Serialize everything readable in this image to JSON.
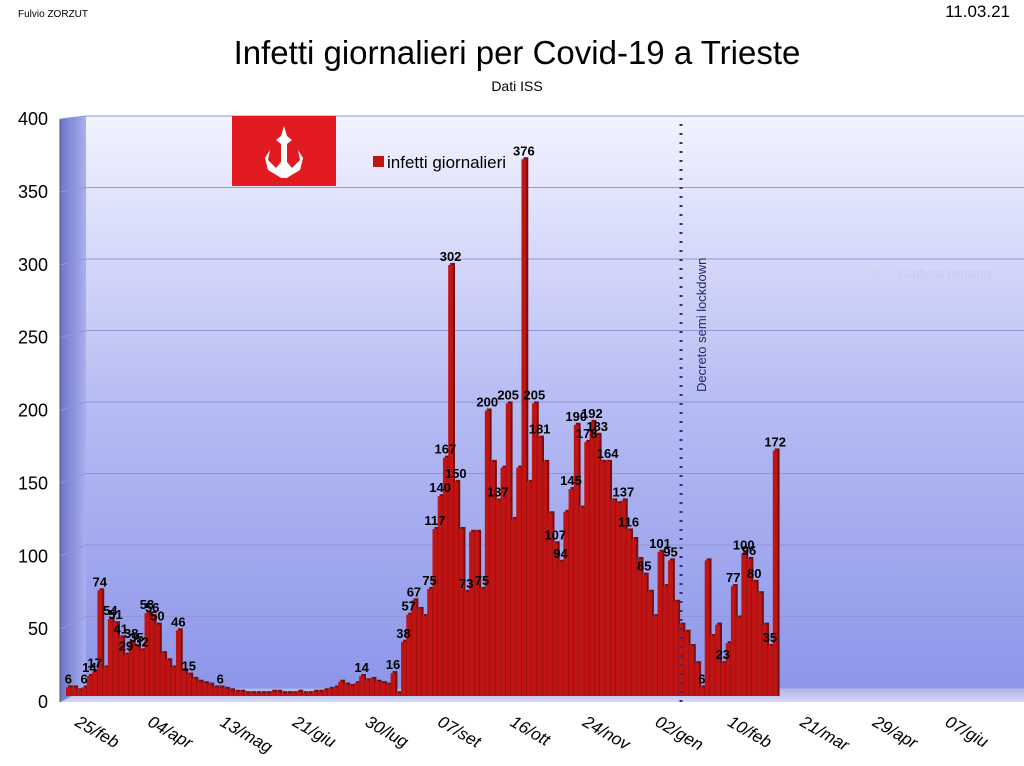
{
  "header": {
    "author": "Fulvio ZORZUT",
    "date": "11.03.21"
  },
  "chart_data": {
    "type": "bar",
    "title": "Infetti giornalieri per Covid-19 a Trieste",
    "subtitle": "Dati ISS",
    "xlabel": "",
    "ylabel": "",
    "ylim": [
      0,
      400
    ],
    "y_ticks": [
      0,
      50,
      100,
      150,
      200,
      250,
      300,
      350,
      400
    ],
    "x_ticks": [
      "25/feb",
      "04/apr",
      "13/mag",
      "21/giu",
      "30/lug",
      "07/set",
      "16/ott",
      "24/nov",
      "02/gen",
      "10/feb",
      "21/mar",
      "29/apr",
      "07/giu"
    ],
    "grid": true,
    "legend_position": "top-center",
    "series": [
      {
        "name": "infetti giornalieri",
        "color": "#c01414",
        "values": [
          6,
          6,
          4,
          6,
          14,
          17,
          74,
          20,
          54,
          51,
          41,
          29,
          38,
          35,
          32,
          58,
          56,
          50,
          30,
          25,
          20,
          46,
          18,
          15,
          12,
          10,
          9,
          8,
          6,
          6,
          5,
          4,
          3,
          3,
          2,
          2,
          2,
          2,
          2,
          3,
          3,
          2,
          2,
          2,
          3,
          2,
          2,
          3,
          3,
          4,
          5,
          6,
          10,
          8,
          7,
          9,
          14,
          11,
          12,
          10,
          9,
          8,
          16,
          2,
          38,
          57,
          67,
          61,
          56,
          75,
          117,
          140,
          167,
          302,
          150,
          117,
          73,
          115,
          115,
          75,
          200,
          164,
          137,
          160,
          205,
          124,
          160,
          376,
          150,
          205,
          181,
          164,
          128,
          107,
          94,
          129,
          145,
          190,
          132,
          178,
          192,
          183,
          164,
          164,
          137,
          135,
          137,
          116,
          110,
          96,
          85,
          73,
          56,
          101,
          77,
          95,
          66,
          50,
          45,
          35,
          23,
          6,
          95,
          42,
          50,
          23,
          37,
          77,
          55,
          100,
          96,
          80,
          72,
          50,
          35,
          172
        ]
      }
    ],
    "data_labels": [
      {
        "i": 0,
        "v": "6"
      },
      {
        "i": 3,
        "v": "6"
      },
      {
        "i": 4,
        "v": "14"
      },
      {
        "i": 5,
        "v": "17"
      },
      {
        "i": 6,
        "v": "74"
      },
      {
        "i": 8,
        "v": "54"
      },
      {
        "i": 9,
        "v": "51"
      },
      {
        "i": 10,
        "v": "41"
      },
      {
        "i": 11,
        "v": "29"
      },
      {
        "i": 12,
        "v": "38"
      },
      {
        "i": 13,
        "v": "35"
      },
      {
        "i": 14,
        "v": "32"
      },
      {
        "i": 15,
        "v": "58"
      },
      {
        "i": 16,
        "v": "56"
      },
      {
        "i": 17,
        "v": "50"
      },
      {
        "i": 21,
        "v": "46"
      },
      {
        "i": 23,
        "v": "15"
      },
      {
        "i": 29,
        "v": "6"
      },
      {
        "i": 56,
        "v": "14"
      },
      {
        "i": 62,
        "v": "16"
      },
      {
        "i": 64,
        "v": "38"
      },
      {
        "i": 65,
        "v": "57"
      },
      {
        "i": 66,
        "v": "67"
      },
      {
        "i": 69,
        "v": "75"
      },
      {
        "i": 70,
        "v": "117"
      },
      {
        "i": 71,
        "v": "140"
      },
      {
        "i": 72,
        "v": "167"
      },
      {
        "i": 73,
        "v": "302"
      },
      {
        "i": 74,
        "v": "150"
      },
      {
        "i": 76,
        "v": "73"
      },
      {
        "i": 79,
        "v": "75"
      },
      {
        "i": 80,
        "v": "200"
      },
      {
        "i": 82,
        "v": "137"
      },
      {
        "i": 84,
        "v": "205"
      },
      {
        "i": 87,
        "v": "376"
      },
      {
        "i": 89,
        "v": "205"
      },
      {
        "i": 90,
        "v": "181"
      },
      {
        "i": 93,
        "v": "107"
      },
      {
        "i": 94,
        "v": "94"
      },
      {
        "i": 96,
        "v": "145"
      },
      {
        "i": 97,
        "v": "190"
      },
      {
        "i": 99,
        "v": "178"
      },
      {
        "i": 100,
        "v": "192"
      },
      {
        "i": 101,
        "v": "183"
      },
      {
        "i": 103,
        "v": "164"
      },
      {
        "i": 106,
        "v": "137"
      },
      {
        "i": 107,
        "v": "116"
      },
      {
        "i": 110,
        "v": "85"
      },
      {
        "i": 113,
        "v": "101"
      },
      {
        "i": 115,
        "v": "95"
      },
      {
        "i": 121,
        "v": "6"
      },
      {
        "i": 125,
        "v": "23"
      },
      {
        "i": 127,
        "v": "77"
      },
      {
        "i": 129,
        "v": "100"
      },
      {
        "i": 130,
        "v": "96"
      },
      {
        "i": 131,
        "v": "80"
      },
      {
        "i": 134,
        "v": "35"
      },
      {
        "i": 135,
        "v": "172"
      }
    ],
    "annotations": [
      {
        "text": "Decreto semi lockdown",
        "after_tick": "02/gen"
      }
    ]
  },
  "watermark": "Cattura rettang"
}
